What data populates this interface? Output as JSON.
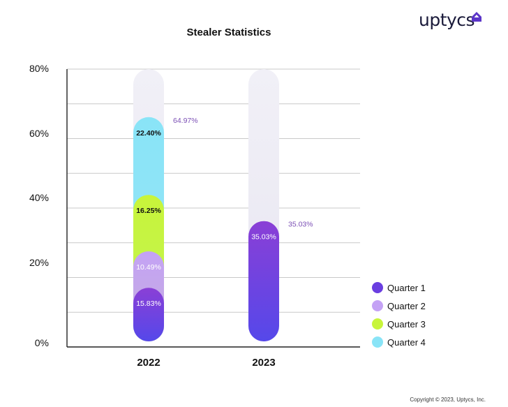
{
  "brand": {
    "name": "uptycs"
  },
  "copyright": "Copyright © 2023, Uptycs, Inc.",
  "colors": {
    "quarter1": "#6a3ee0",
    "quarter2": "#c4a2f5",
    "quarter3": "#c8f53a",
    "quarter4": "#89e4f7",
    "track": "#e8e6f1",
    "total_label": "#7b4fb5"
  },
  "chart_data": {
    "type": "bar",
    "stacked": true,
    "title": "Stealer Statistics",
    "xlabel": "",
    "ylabel": "",
    "ylim": [
      0,
      80
    ],
    "yticks": [
      "0%",
      "20%",
      "40%",
      "60%",
      "80%"
    ],
    "categories": [
      "2022",
      "2023"
    ],
    "series": [
      {
        "name": "Quarter 1",
        "values": [
          15.83,
          35.03
        ],
        "labels": [
          "15.83%",
          "35.03%"
        ]
      },
      {
        "name": "Quarter 2",
        "values": [
          10.49,
          0
        ],
        "labels": [
          "10.49%",
          ""
        ]
      },
      {
        "name": "Quarter 3",
        "values": [
          16.25,
          0
        ],
        "labels": [
          "16.25%",
          ""
        ]
      },
      {
        "name": "Quarter 4",
        "values": [
          22.4,
          0
        ],
        "labels": [
          "22.40%",
          ""
        ]
      }
    ],
    "totals": [
      "64.97%",
      "35.03%"
    ],
    "grid": true,
    "legend": "bottom-right"
  }
}
